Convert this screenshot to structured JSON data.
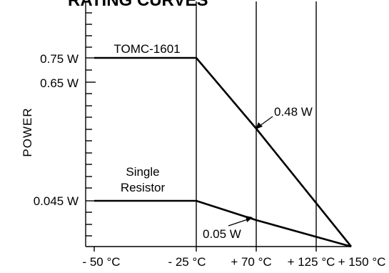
{
  "chart_data": {
    "type": "line",
    "title": "RATING CURVES",
    "ylabel": "POWER",
    "xlabel": "",
    "x_ticks": [
      "- 50 °C",
      "- 25 °C",
      "+ 70 °C",
      "+ 125 °C",
      "+ 150 °C"
    ],
    "y_ticks": [
      "0.75 W",
      "0.65 W",
      "0.045 W"
    ],
    "series": [
      {
        "name": "TOMC-1601",
        "points": [
          {
            "x": "- 50 °C",
            "y": 0.75
          },
          {
            "x": "- 25 °C",
            "y": 0.75
          },
          {
            "x": "+ 70 °C",
            "y": 0.48
          },
          {
            "x": "+ 150 °C",
            "y": 0
          }
        ]
      },
      {
        "name": "Single Resistor",
        "points": [
          {
            "x": "- 50 °C",
            "y": 0.045
          },
          {
            "x": "- 25 °C",
            "y": 0.045
          },
          {
            "x": "+ 70 °C",
            "y": 0.05
          },
          {
            "x": "+ 150 °C",
            "y": 0
          }
        ]
      }
    ],
    "annotations": [
      {
        "text": "0.48 W",
        "target_series": "TOMC-1601"
      },
      {
        "text": "0.05 W",
        "target_series": "Single Resistor"
      }
    ],
    "single_resistor_label_lines": [
      "Single",
      "Resistor"
    ],
    "grid": "vertical"
  }
}
